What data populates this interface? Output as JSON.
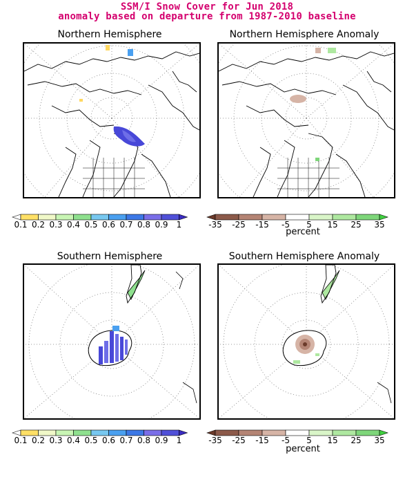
{
  "title": {
    "line1": "SSM/I Snow Cover for Jun 2018",
    "line2": "anomaly based on departure from 1987-2010 baseline"
  },
  "panels": {
    "nh": {
      "title": "Northern Hemisphere"
    },
    "nh_anom": {
      "title": "Northern Hemisphere Anomaly"
    },
    "sh": {
      "title": "Southern Hemisphere"
    },
    "sh_anom": {
      "title": "Southern Hemisphere Anomaly"
    }
  },
  "colorbars": {
    "cover": {
      "labels": [
        "0.1",
        "0.2",
        "0.3",
        "0.4",
        "0.5",
        "0.6",
        "0.7",
        "0.8",
        "0.9",
        "1"
      ],
      "colors": [
        "#ffffff",
        "#ffe066",
        "#f0f8c8",
        "#c8f5b4",
        "#8ee08e",
        "#78c8f0",
        "#4aa0f0",
        "#3c78e6",
        "#7a6ee8",
        "#5050d8",
        "#3a2cc0"
      ]
    },
    "anomaly": {
      "labels": [
        "-35",
        "-25",
        "-15",
        "-5",
        "5",
        "15",
        "25",
        "35"
      ],
      "colors": [
        "#6b3a2a",
        "#8c5a4a",
        "#b48474",
        "#d6b4a6",
        "#ffffff",
        "#d9f5c8",
        "#aee8a0",
        "#7ed67a",
        "#40d040"
      ],
      "unit": "percent"
    }
  },
  "map_colors": {
    "snow_high": "#4848d8",
    "snow_mid": "#6e6ee8",
    "snow_low": "#ffd860",
    "green_anom": "#8edc86",
    "brown_anom": "#c89a88",
    "grid": "#7a7a7a"
  }
}
